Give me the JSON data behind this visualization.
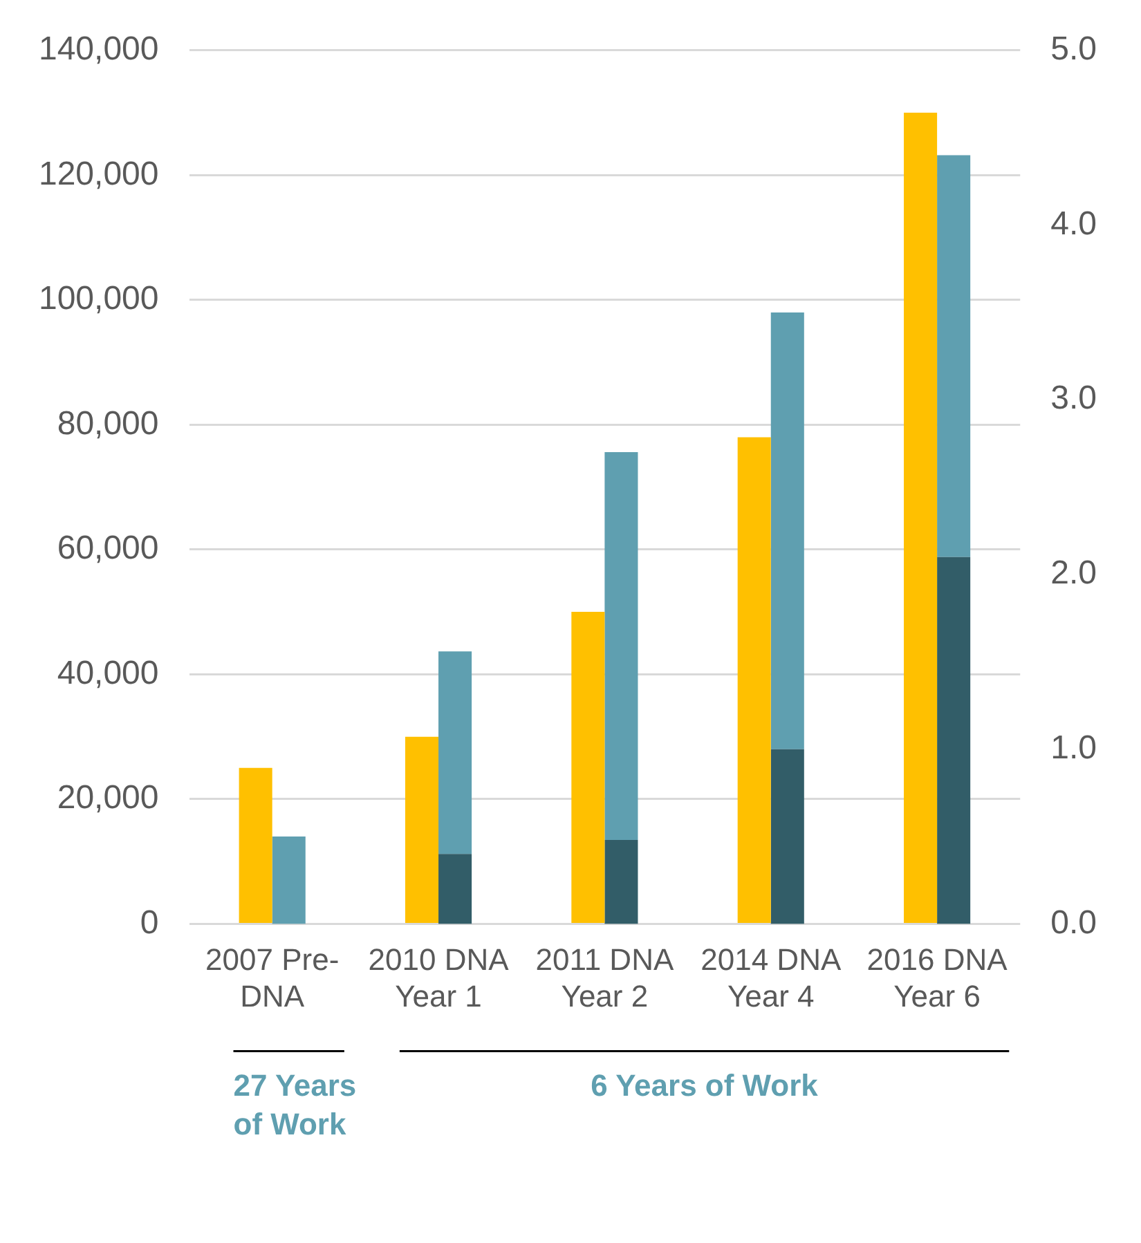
{
  "chart_data": {
    "type": "bar",
    "categories": [
      "2007 Pre-DNA",
      "2010 DNA Year 1",
      "2011 DNA Year 2",
      "2014 DNA Year 4",
      "2016 DNA Year 6"
    ],
    "series": [
      {
        "color": "#ffc000",
        "values": [
          25000,
          30000,
          50000,
          78000,
          130000
        ]
      },
      {
        "color": "#325d68",
        "axis": "y2",
        "values": [
          null,
          0.4,
          0.48,
          1.0,
          2.1
        ]
      },
      {
        "color": "#5f9fb0",
        "axis": "y2",
        "values": [
          0.5,
          1.16,
          2.22,
          2.5,
          2.3
        ]
      }
    ],
    "stacked": true,
    "ylim": [
      0,
      140000
    ],
    "yticks": [
      0,
      {
        "value": 20000,
        "label": "20,000"
      },
      {
        "value": 40000,
        "label": "40,000"
      },
      {
        "value": 60000,
        "label": "60,000"
      },
      {
        "value": 80000,
        "label": "80,000"
      },
      {
        "value": 100000,
        "label": "100,000"
      },
      {
        "value": 120000,
        "label": "120,000"
      },
      {
        "value": 140000,
        "label": "140,000"
      }
    ],
    "y2lim": [
      0,
      5
    ],
    "y2ticks": [
      {
        "value": 0,
        "label": "0.0"
      },
      {
        "value": 1,
        "label": "1.0"
      },
      {
        "value": 2,
        "label": "2.0"
      },
      {
        "value": 3,
        "label": "3.0"
      },
      {
        "value": 4,
        "label": "4.0"
      },
      {
        "value": 5,
        "label": "5.0"
      }
    ],
    "grid": "y",
    "legend": false,
    "annotations": [
      "27 Years of Work",
      "6 Years of Work"
    ]
  }
}
